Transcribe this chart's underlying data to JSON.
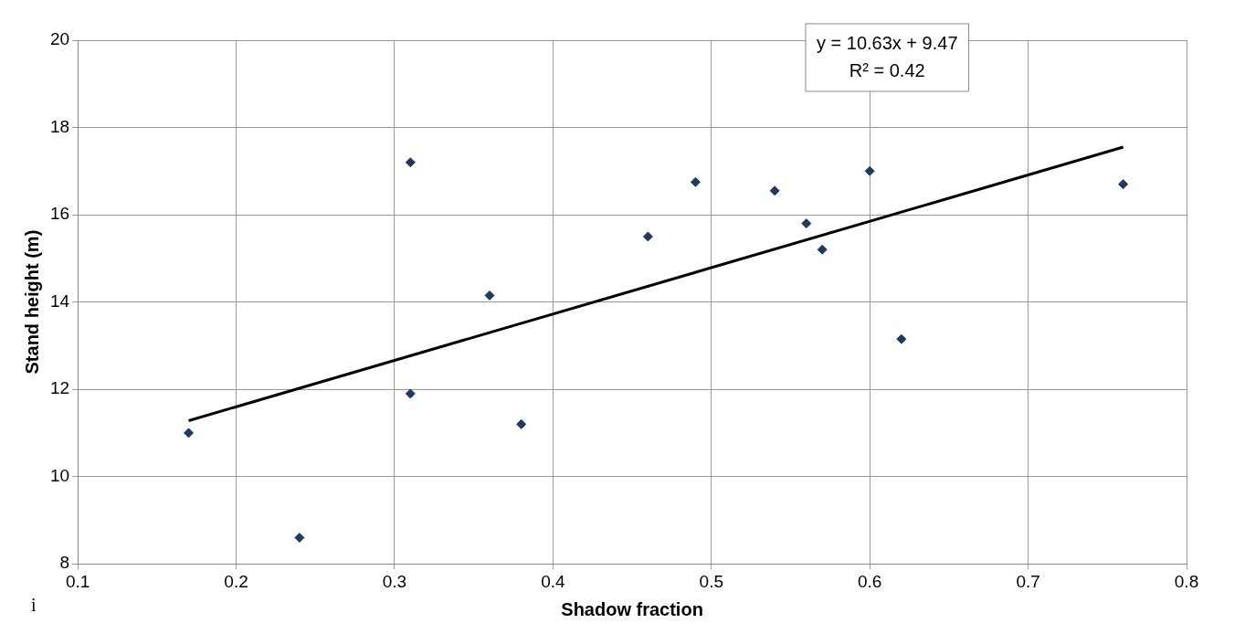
{
  "chart_data": {
    "type": "scatter",
    "xlabel": "Shadow fraction",
    "ylabel": "Stand height (m)",
    "xlim": [
      0.1,
      0.8
    ],
    "xticks": [
      0.1,
      0.2,
      0.3,
      0.4,
      0.5,
      0.6,
      0.7,
      0.8
    ],
    "ylim": [
      8,
      20
    ],
    "yticks": [
      8,
      10,
      12,
      14,
      16,
      18,
      20
    ],
    "grid": true,
    "legend": false,
    "marker": "diamond",
    "series": [
      {
        "color": "#1f3864",
        "x": [
          0.17,
          0.24,
          0.31,
          0.31,
          0.36,
          0.38,
          0.46,
          0.49,
          0.54,
          0.56,
          0.57,
          0.6,
          0.62,
          0.76
        ],
        "values": [
          11.0,
          8.6,
          17.2,
          11.9,
          14.15,
          11.2,
          15.5,
          16.75,
          16.55,
          15.8,
          15.2,
          17.0,
          13.15,
          16.7
        ]
      },
      {
        "type": "line",
        "color": "#000000",
        "marker": "none",
        "x": [
          0.17,
          0.76
        ],
        "values": [
          11.28,
          17.55
        ]
      }
    ],
    "annotations": [
      "y = 10.63x + 9.47\nR² = 0.42",
      "i"
    ]
  }
}
